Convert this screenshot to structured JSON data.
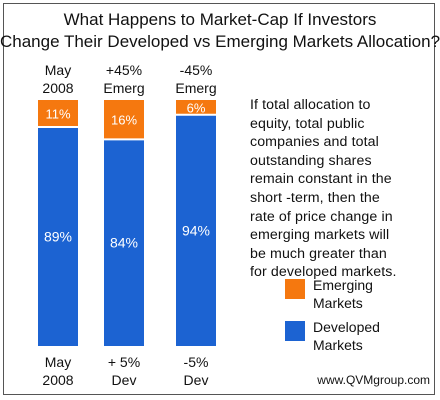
{
  "chart_data": {
    "type": "bar",
    "stacked": true,
    "title_line1": "What Happens to Market-Cap If Investors",
    "title_line2": "Change Their Developed vs Emerging Markets Allocation?",
    "top_labels": [
      [
        "May",
        "2008"
      ],
      [
        "+45%",
        "Emerg"
      ],
      [
        "-45%",
        "Emerg"
      ]
    ],
    "bottom_labels": [
      [
        "May",
        "2008"
      ],
      [
        "+ 5%",
        "Dev"
      ],
      [
        "-5%",
        "Dev"
      ]
    ],
    "series": [
      {
        "name": "Developed Markets",
        "color": "#1c63d2",
        "values": [
          89,
          84,
          94
        ],
        "labels": [
          "89%",
          "84%",
          "94%"
        ]
      },
      {
        "name": "Emerging Markets",
        "color": "#f5780f",
        "values": [
          11,
          16,
          6
        ],
        "labels": [
          "11%",
          "16%",
          "6%"
        ]
      }
    ],
    "ylim": [
      0,
      100
    ],
    "xlabel": "",
    "ylabel": "",
    "grid": false,
    "legend_position": "right"
  },
  "note": "If total allocation to\nequity, total public\ncompanies and total\noutstanding shares\nremain constant in the\nshort -term, then the\nrate of price change in\nemerging markets will\nbe much greater than\nfor developed markets.",
  "legend": {
    "emerging": "Emerging\nMarkets",
    "developed": "Developed\nMarkets"
  },
  "footer": "www.QVMgroup.com",
  "colors": {
    "emerging": "#f5780f",
    "developed": "#1c63d2",
    "divider": "#ffffff"
  }
}
